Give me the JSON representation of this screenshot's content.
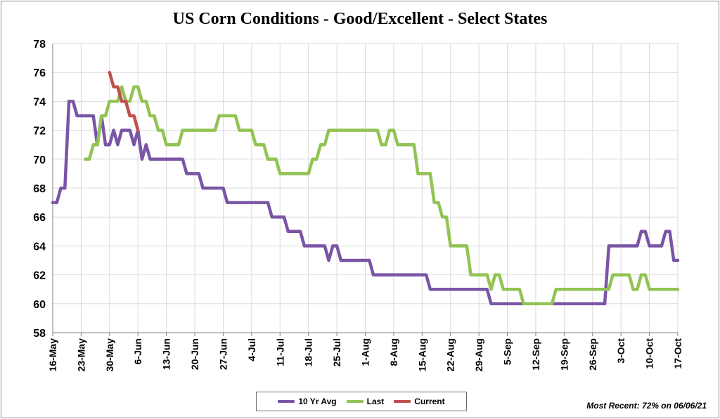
{
  "chart_data": {
    "type": "line",
    "title": "US Corn Conditions - Good/Excellent - Select States",
    "xlabel": "",
    "ylabel": "",
    "ylim": [
      58,
      78
    ],
    "yticks": [
      58,
      60,
      62,
      64,
      66,
      68,
      70,
      72,
      74,
      76,
      78
    ],
    "x_range": [
      "16-May",
      "17-Oct"
    ],
    "x_ticks": [
      "16-May",
      "23-May",
      "30-May",
      "6-Jun",
      "13-Jun",
      "20-Jun",
      "27-Jun",
      "4-Jul",
      "11-Jul",
      "18-Jul",
      "25-Jul",
      "1-Aug",
      "8-Aug",
      "15-Aug",
      "22-Aug",
      "29-Aug",
      "5-Sep",
      "12-Sep",
      "19-Sep",
      "26-Sep",
      "3-Oct",
      "10-Oct",
      "17-Oct"
    ],
    "grid": true,
    "legend_position": "bottom",
    "series": [
      {
        "name": "10 Yr Avg",
        "color": "#7a55a5",
        "points": [
          [
            "16-May",
            67
          ],
          [
            "17-May",
            67
          ],
          [
            "18-May",
            68
          ],
          [
            "19-May",
            68
          ],
          [
            "20-May",
            74
          ],
          [
            "21-May",
            74
          ],
          [
            "22-May",
            73
          ],
          [
            "23-May",
            73
          ],
          [
            "24-May",
            73
          ],
          [
            "25-May",
            73
          ],
          [
            "26-May",
            73
          ],
          [
            "27-May",
            71
          ],
          [
            "28-May",
            73
          ],
          [
            "29-May",
            71
          ],
          [
            "30-May",
            71
          ],
          [
            "31-May",
            72
          ],
          [
            "1-Jun",
            71
          ],
          [
            "2-Jun",
            72
          ],
          [
            "3-Jun",
            72
          ],
          [
            "4-Jun",
            72
          ],
          [
            "5-Jun",
            71
          ],
          [
            "6-Jun",
            72
          ],
          [
            "7-Jun",
            70
          ],
          [
            "8-Jun",
            71
          ],
          [
            "9-Jun",
            70
          ],
          [
            "10-Jun",
            70
          ],
          [
            "12-Jun",
            70
          ],
          [
            "14-Jun",
            70
          ],
          [
            "16-Jun",
            70
          ],
          [
            "17-Jun",
            70
          ],
          [
            "18-Jun",
            69
          ],
          [
            "21-Jun",
            69
          ],
          [
            "22-Jun",
            68
          ],
          [
            "27-Jun",
            68
          ],
          [
            "28-Jun",
            67
          ],
          [
            "8-Jul",
            67
          ],
          [
            "9-Jul",
            66
          ],
          [
            "12-Jul",
            66
          ],
          [
            "13-Jul",
            65
          ],
          [
            "16-Jul",
            65
          ],
          [
            "17-Jul",
            64
          ],
          [
            "22-Jul",
            64
          ],
          [
            "23-Jul",
            63
          ],
          [
            "24-Jul",
            64
          ],
          [
            "25-Jul",
            64
          ],
          [
            "26-Jul",
            63
          ],
          [
            "2-Aug",
            63
          ],
          [
            "3-Aug",
            62
          ],
          [
            "16-Aug",
            62
          ],
          [
            "17-Aug",
            61
          ],
          [
            "31-Aug",
            61
          ],
          [
            "1-Sep",
            60
          ],
          [
            "29-Sep",
            60
          ],
          [
            "30-Sep",
            64
          ],
          [
            "7-Oct",
            64
          ],
          [
            "8-Oct",
            65
          ],
          [
            "9-Oct",
            65
          ],
          [
            "10-Oct",
            64
          ],
          [
            "13-Oct",
            64
          ],
          [
            "14-Oct",
            65
          ],
          [
            "15-Oct",
            65
          ],
          [
            "16-Oct",
            63
          ],
          [
            "17-Oct",
            63
          ]
        ]
      },
      {
        "name": "Last",
        "color": "#92c353",
        "points": [
          [
            "24-May",
            70
          ],
          [
            "25-May",
            70
          ],
          [
            "26-May",
            71
          ],
          [
            "27-May",
            71
          ],
          [
            "28-May",
            73
          ],
          [
            "29-May",
            73
          ],
          [
            "30-May",
            74
          ],
          [
            "1-Jun",
            74
          ],
          [
            "2-Jun",
            75
          ],
          [
            "3-Jun",
            74
          ],
          [
            "4-Jun",
            74
          ],
          [
            "5-Jun",
            75
          ],
          [
            "6-Jun",
            75
          ],
          [
            "7-Jun",
            74
          ],
          [
            "8-Jun",
            74
          ],
          [
            "9-Jun",
            73
          ],
          [
            "10-Jun",
            73
          ],
          [
            "11-Jun",
            72
          ],
          [
            "12-Jun",
            72
          ],
          [
            "13-Jun",
            71
          ],
          [
            "15-Jun",
            71
          ],
          [
            "16-Jun",
            71
          ],
          [
            "17-Jun",
            72
          ],
          [
            "25-Jun",
            72
          ],
          [
            "26-Jun",
            73
          ],
          [
            "30-Jun",
            73
          ],
          [
            "1-Jul",
            72
          ],
          [
            "4-Jul",
            72
          ],
          [
            "5-Jul",
            71
          ],
          [
            "7-Jul",
            71
          ],
          [
            "8-Jul",
            70
          ],
          [
            "10-Jul",
            70
          ],
          [
            "11-Jul",
            69
          ],
          [
            "18-Jul",
            69
          ],
          [
            "19-Jul",
            70
          ],
          [
            "20-Jul",
            70
          ],
          [
            "21-Jul",
            71
          ],
          [
            "22-Jul",
            71
          ],
          [
            "23-Jul",
            72
          ],
          [
            "31-Jul",
            72
          ],
          [
            "2-Aug",
            72
          ],
          [
            "4-Aug",
            72
          ],
          [
            "5-Aug",
            71
          ],
          [
            "6-Aug",
            71
          ],
          [
            "7-Aug",
            72
          ],
          [
            "8-Aug",
            72
          ],
          [
            "9-Aug",
            71
          ],
          [
            "13-Aug",
            71
          ],
          [
            "14-Aug",
            69
          ],
          [
            "17-Aug",
            69
          ],
          [
            "18-Aug",
            67
          ],
          [
            "19-Aug",
            67
          ],
          [
            "20-Aug",
            66
          ],
          [
            "21-Aug",
            66
          ],
          [
            "22-Aug",
            64
          ],
          [
            "26-Aug",
            64
          ],
          [
            "27-Aug",
            62
          ],
          [
            "31-Aug",
            62
          ],
          [
            "1-Sep",
            61
          ],
          [
            "2-Sep",
            62
          ],
          [
            "3-Sep",
            62
          ],
          [
            "4-Sep",
            61
          ],
          [
            "8-Sep",
            61
          ],
          [
            "9-Sep",
            60
          ],
          [
            "16-Sep",
            60
          ],
          [
            "17-Sep",
            61
          ],
          [
            "30-Sep",
            61
          ],
          [
            "1-Oct",
            62
          ],
          [
            "5-Oct",
            62
          ],
          [
            "6-Oct",
            61
          ],
          [
            "7-Oct",
            61
          ],
          [
            "8-Oct",
            62
          ],
          [
            "9-Oct",
            62
          ],
          [
            "10-Oct",
            61
          ],
          [
            "17-Oct",
            61
          ]
        ]
      },
      {
        "name": "Current",
        "color": "#c0504d",
        "points": [
          [
            "30-May",
            76
          ],
          [
            "31-May",
            75
          ],
          [
            "1-Jun",
            75
          ],
          [
            "2-Jun",
            74
          ],
          [
            "3-Jun",
            74
          ],
          [
            "4-Jun",
            73
          ],
          [
            "5-Jun",
            73
          ],
          [
            "6-Jun",
            72
          ]
        ]
      }
    ]
  },
  "footnote": "Most Recent: 72% on 06/06/21"
}
